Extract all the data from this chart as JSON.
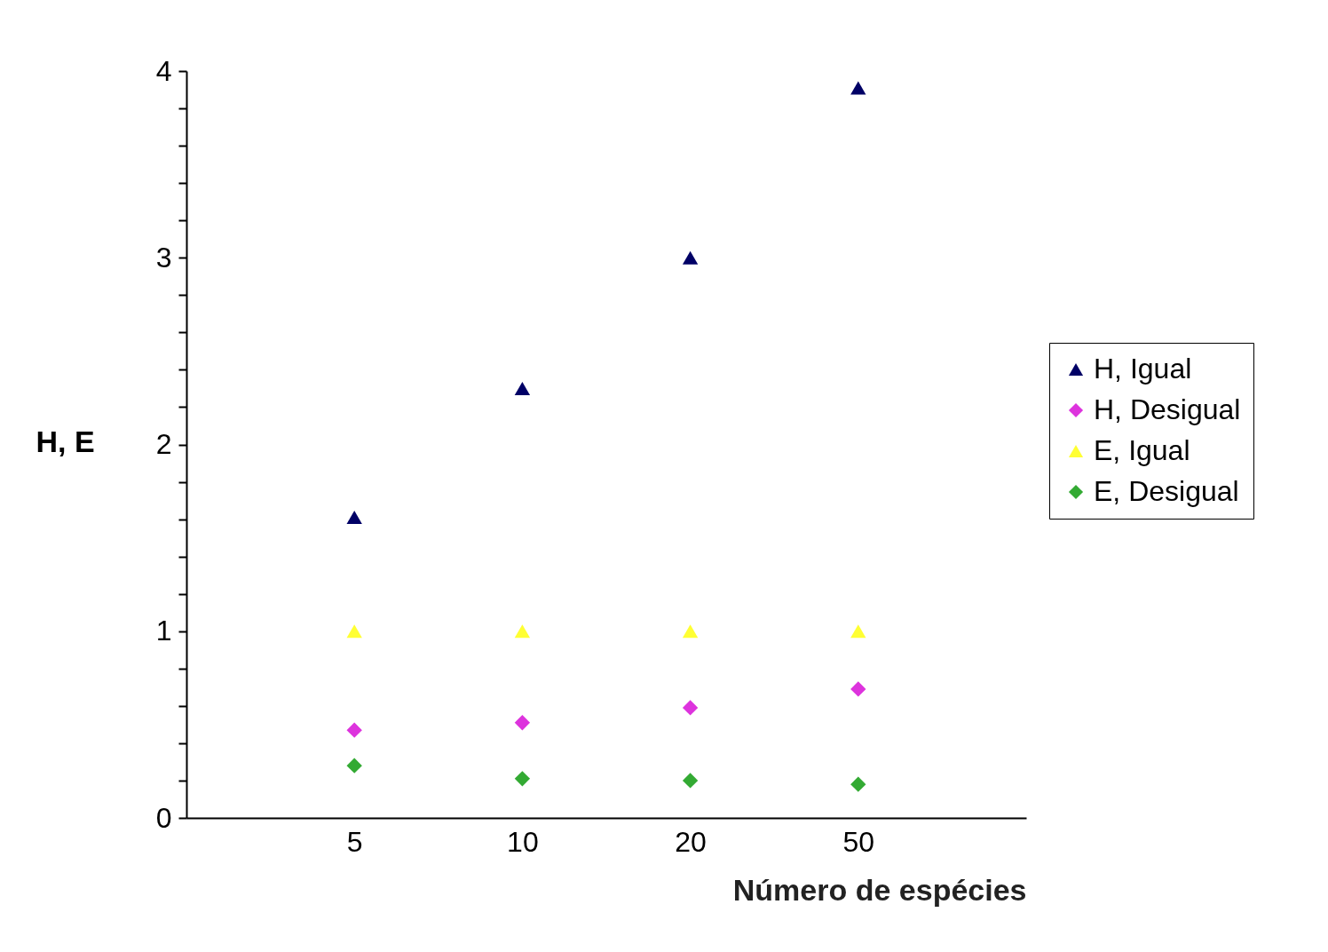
{
  "chart_data": {
    "type": "scatter",
    "xlabel": "Número de espécies",
    "ylabel": "H, E",
    "categories": [
      "5",
      "10",
      "20",
      "50"
    ],
    "series": [
      {
        "name": "H, Igual",
        "color": "#000066",
        "marker": "triangle",
        "values": [
          1.61,
          2.3,
          3.0,
          3.91
        ]
      },
      {
        "name": "H, Desigual",
        "color": "#dd33dd",
        "marker": "diamond",
        "values": [
          0.47,
          0.51,
          0.59,
          0.69
        ]
      },
      {
        "name": "E, Igual",
        "color": "#ffff33",
        "marker": "triangle",
        "values": [
          1,
          1,
          1,
          1
        ]
      },
      {
        "name": "E, Desigual",
        "color": "#33aa33",
        "marker": "diamond",
        "values": [
          0.28,
          0.21,
          0.2,
          0.18
        ]
      }
    ],
    "ylim": [
      0,
      4
    ],
    "yticks": [
      0,
      {
        "value": 0.2,
        "label": null
      },
      {
        "value": 0.4,
        "label": null
      },
      {
        "value": 0.6,
        "label": null
      },
      {
        "value": 0.8,
        "label": null
      },
      1,
      {
        "value": 1.2,
        "label": null
      },
      {
        "value": 1.4,
        "label": null
      },
      {
        "value": 1.6,
        "label": null
      },
      {
        "value": 1.8,
        "label": null
      },
      2,
      {
        "value": 2.2,
        "label": null
      },
      {
        "value": 2.4,
        "label": null
      },
      {
        "value": 2.6,
        "label": null
      },
      {
        "value": 2.8,
        "label": null
      },
      3,
      {
        "value": 3.2,
        "label": null
      },
      {
        "value": 3.4,
        "label": null
      },
      {
        "value": 3.6,
        "label": null
      },
      {
        "value": 3.8,
        "label": null
      },
      4
    ],
    "grid": false,
    "legend": "right"
  }
}
